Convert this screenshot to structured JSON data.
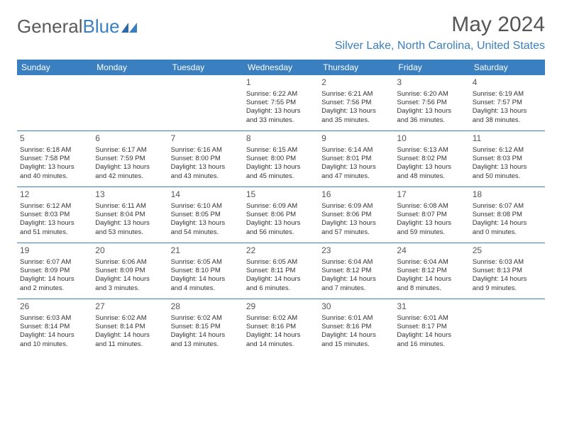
{
  "logo": {
    "text1": "General",
    "text2": "Blue"
  },
  "title": "May 2024",
  "location": "Silver Lake, North Carolina, United States",
  "header_bg": "#3a7fbf",
  "weekdays": [
    "Sunday",
    "Monday",
    "Tuesday",
    "Wednesday",
    "Thursday",
    "Friday",
    "Saturday"
  ],
  "weeks": [
    [
      {
        "blank": true
      },
      {
        "blank": true
      },
      {
        "blank": true
      },
      {
        "day": "1",
        "sunrise": "Sunrise: 6:22 AM",
        "sunset": "Sunset: 7:55 PM",
        "daylight1": "Daylight: 13 hours",
        "daylight2": "and 33 minutes."
      },
      {
        "day": "2",
        "sunrise": "Sunrise: 6:21 AM",
        "sunset": "Sunset: 7:56 PM",
        "daylight1": "Daylight: 13 hours",
        "daylight2": "and 35 minutes."
      },
      {
        "day": "3",
        "sunrise": "Sunrise: 6:20 AM",
        "sunset": "Sunset: 7:56 PM",
        "daylight1": "Daylight: 13 hours",
        "daylight2": "and 36 minutes."
      },
      {
        "day": "4",
        "sunrise": "Sunrise: 6:19 AM",
        "sunset": "Sunset: 7:57 PM",
        "daylight1": "Daylight: 13 hours",
        "daylight2": "and 38 minutes."
      }
    ],
    [
      {
        "day": "5",
        "sunrise": "Sunrise: 6:18 AM",
        "sunset": "Sunset: 7:58 PM",
        "daylight1": "Daylight: 13 hours",
        "daylight2": "and 40 minutes."
      },
      {
        "day": "6",
        "sunrise": "Sunrise: 6:17 AM",
        "sunset": "Sunset: 7:59 PM",
        "daylight1": "Daylight: 13 hours",
        "daylight2": "and 42 minutes."
      },
      {
        "day": "7",
        "sunrise": "Sunrise: 6:16 AM",
        "sunset": "Sunset: 8:00 PM",
        "daylight1": "Daylight: 13 hours",
        "daylight2": "and 43 minutes."
      },
      {
        "day": "8",
        "sunrise": "Sunrise: 6:15 AM",
        "sunset": "Sunset: 8:00 PM",
        "daylight1": "Daylight: 13 hours",
        "daylight2": "and 45 minutes."
      },
      {
        "day": "9",
        "sunrise": "Sunrise: 6:14 AM",
        "sunset": "Sunset: 8:01 PM",
        "daylight1": "Daylight: 13 hours",
        "daylight2": "and 47 minutes."
      },
      {
        "day": "10",
        "sunrise": "Sunrise: 6:13 AM",
        "sunset": "Sunset: 8:02 PM",
        "daylight1": "Daylight: 13 hours",
        "daylight2": "and 48 minutes."
      },
      {
        "day": "11",
        "sunrise": "Sunrise: 6:12 AM",
        "sunset": "Sunset: 8:03 PM",
        "daylight1": "Daylight: 13 hours",
        "daylight2": "and 50 minutes."
      }
    ],
    [
      {
        "day": "12",
        "sunrise": "Sunrise: 6:12 AM",
        "sunset": "Sunset: 8:03 PM",
        "daylight1": "Daylight: 13 hours",
        "daylight2": "and 51 minutes."
      },
      {
        "day": "13",
        "sunrise": "Sunrise: 6:11 AM",
        "sunset": "Sunset: 8:04 PM",
        "daylight1": "Daylight: 13 hours",
        "daylight2": "and 53 minutes."
      },
      {
        "day": "14",
        "sunrise": "Sunrise: 6:10 AM",
        "sunset": "Sunset: 8:05 PM",
        "daylight1": "Daylight: 13 hours",
        "daylight2": "and 54 minutes."
      },
      {
        "day": "15",
        "sunrise": "Sunrise: 6:09 AM",
        "sunset": "Sunset: 8:06 PM",
        "daylight1": "Daylight: 13 hours",
        "daylight2": "and 56 minutes."
      },
      {
        "day": "16",
        "sunrise": "Sunrise: 6:09 AM",
        "sunset": "Sunset: 8:06 PM",
        "daylight1": "Daylight: 13 hours",
        "daylight2": "and 57 minutes."
      },
      {
        "day": "17",
        "sunrise": "Sunrise: 6:08 AM",
        "sunset": "Sunset: 8:07 PM",
        "daylight1": "Daylight: 13 hours",
        "daylight2": "and 59 minutes."
      },
      {
        "day": "18",
        "sunrise": "Sunrise: 6:07 AM",
        "sunset": "Sunset: 8:08 PM",
        "daylight1": "Daylight: 14 hours",
        "daylight2": "and 0 minutes."
      }
    ],
    [
      {
        "day": "19",
        "sunrise": "Sunrise: 6:07 AM",
        "sunset": "Sunset: 8:09 PM",
        "daylight1": "Daylight: 14 hours",
        "daylight2": "and 2 minutes."
      },
      {
        "day": "20",
        "sunrise": "Sunrise: 6:06 AM",
        "sunset": "Sunset: 8:09 PM",
        "daylight1": "Daylight: 14 hours",
        "daylight2": "and 3 minutes."
      },
      {
        "day": "21",
        "sunrise": "Sunrise: 6:05 AM",
        "sunset": "Sunset: 8:10 PM",
        "daylight1": "Daylight: 14 hours",
        "daylight2": "and 4 minutes."
      },
      {
        "day": "22",
        "sunrise": "Sunrise: 6:05 AM",
        "sunset": "Sunset: 8:11 PM",
        "daylight1": "Daylight: 14 hours",
        "daylight2": "and 6 minutes."
      },
      {
        "day": "23",
        "sunrise": "Sunrise: 6:04 AM",
        "sunset": "Sunset: 8:12 PM",
        "daylight1": "Daylight: 14 hours",
        "daylight2": "and 7 minutes."
      },
      {
        "day": "24",
        "sunrise": "Sunrise: 6:04 AM",
        "sunset": "Sunset: 8:12 PM",
        "daylight1": "Daylight: 14 hours",
        "daylight2": "and 8 minutes."
      },
      {
        "day": "25",
        "sunrise": "Sunrise: 6:03 AM",
        "sunset": "Sunset: 8:13 PM",
        "daylight1": "Daylight: 14 hours",
        "daylight2": "and 9 minutes."
      }
    ],
    [
      {
        "day": "26",
        "sunrise": "Sunrise: 6:03 AM",
        "sunset": "Sunset: 8:14 PM",
        "daylight1": "Daylight: 14 hours",
        "daylight2": "and 10 minutes."
      },
      {
        "day": "27",
        "sunrise": "Sunrise: 6:02 AM",
        "sunset": "Sunset: 8:14 PM",
        "daylight1": "Daylight: 14 hours",
        "daylight2": "and 11 minutes."
      },
      {
        "day": "28",
        "sunrise": "Sunrise: 6:02 AM",
        "sunset": "Sunset: 8:15 PM",
        "daylight1": "Daylight: 14 hours",
        "daylight2": "and 13 minutes."
      },
      {
        "day": "29",
        "sunrise": "Sunrise: 6:02 AM",
        "sunset": "Sunset: 8:16 PM",
        "daylight1": "Daylight: 14 hours",
        "daylight2": "and 14 minutes."
      },
      {
        "day": "30",
        "sunrise": "Sunrise: 6:01 AM",
        "sunset": "Sunset: 8:16 PM",
        "daylight1": "Daylight: 14 hours",
        "daylight2": "and 15 minutes."
      },
      {
        "day": "31",
        "sunrise": "Sunrise: 6:01 AM",
        "sunset": "Sunset: 8:17 PM",
        "daylight1": "Daylight: 14 hours",
        "daylight2": "and 16 minutes."
      },
      {
        "blank": true
      }
    ]
  ]
}
